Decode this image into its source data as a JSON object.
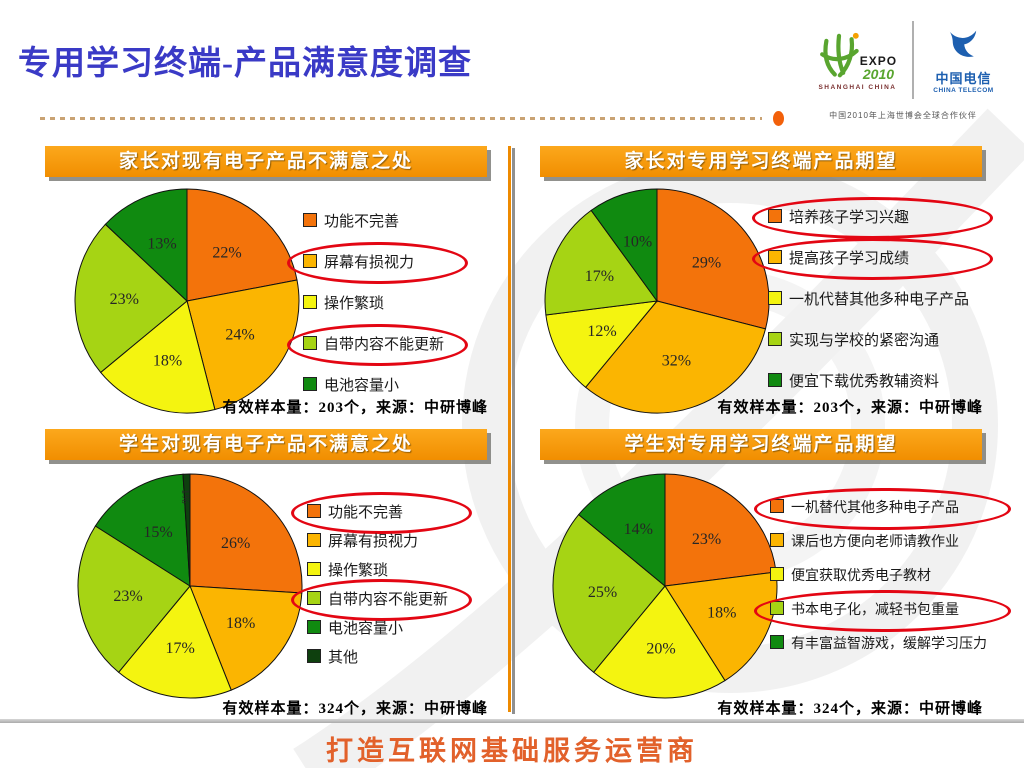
{
  "slide": {
    "title": "专用学习终端-产品满意度调查",
    "footer": "打造互联网基础服务运营商",
    "header_logos": {
      "expo_text": "EXPO",
      "expo_year": "2010",
      "expo_sub": "SHANGHAI CHINA",
      "telecom_cn": "中国电信",
      "telecom_en": "CHINA TELECOM",
      "caption": "中国2010年上海世博会全球合作伙伴"
    }
  },
  "colors": {
    "title_blue": "#3A3AC6",
    "banner_orange": "#F79500",
    "footer_orange": "#E2612B",
    "divider_orange": "#EE8A00",
    "emphasis_red": "#E30613"
  },
  "chart_data": [
    {
      "type": "pie",
      "title": "家长对现有电子产品不满意之处",
      "labels": [
        "功能不完善",
        "屏幕有损视力",
        "操作繁琐",
        "自带内容不能更新",
        "电池容量小"
      ],
      "values": [
        22,
        24,
        18,
        23,
        13
      ],
      "pct_labels": [
        "22%",
        "24%",
        "18%",
        "23%",
        "13%"
      ],
      "colors": [
        "#F3730B",
        "#FBB501",
        "#F4F410",
        "#A6D414",
        "#108A10"
      ],
      "circled": [
        1,
        3
      ],
      "legend_position": "right",
      "source": "有效样本量：203个，来源：中研博峰"
    },
    {
      "type": "pie",
      "title": "家长对专用学习终端产品期望",
      "labels": [
        "培养孩子学习兴趣",
        "提高孩子学习成绩",
        "一机代替其他多种电子产品",
        "实现与学校的紧密沟通",
        "便宜下载优秀教辅资料"
      ],
      "values": [
        29,
        32,
        12,
        17,
        10
      ],
      "pct_labels": [
        "29%",
        "32%",
        "12%",
        "17%",
        "10%"
      ],
      "colors": [
        "#F3730B",
        "#FBB501",
        "#F4F410",
        "#A6D414",
        "#108A10"
      ],
      "circled": [
        0,
        1
      ],
      "legend_position": "right",
      "source": "有效样本量：203个，来源：中研博峰"
    },
    {
      "type": "pie",
      "title": "学生对现有电子产品不满意之处",
      "labels": [
        "功能不完善",
        "屏幕有损视力",
        "操作繁琐",
        "自带内容不能更新",
        "电池容量小",
        "其他"
      ],
      "values": [
        26,
        18,
        17,
        23,
        15,
        1
      ],
      "pct_labels": [
        "26%",
        "18%",
        "17%",
        "23%",
        "15%",
        "1%"
      ],
      "colors": [
        "#F3730B",
        "#FBB501",
        "#F4F410",
        "#A6D414",
        "#108A10",
        "#0E400E"
      ],
      "circled": [
        0,
        3
      ],
      "legend_position": "right",
      "source": "有效样本量：324个，来源：中研博峰"
    },
    {
      "type": "pie",
      "title": "学生对专用学习终端产品期望",
      "labels": [
        "一机替代其他多种电子产品",
        "课后也方便向老师请教作业",
        "便宜获取优秀电子教材",
        "书本电子化，减轻书包重量",
        "有丰富益智游戏，缓解学习压力"
      ],
      "values": [
        23,
        18,
        20,
        25,
        14
      ],
      "pct_labels": [
        "23%",
        "18%",
        "20%",
        "25%",
        "14%"
      ],
      "colors": [
        "#F3730B",
        "#FBB501",
        "#F4F410",
        "#A6D414",
        "#108A10"
      ],
      "circled": [
        0,
        3
      ],
      "legend_position": "right",
      "source": "有效样本量：324个，来源：中研博峰"
    }
  ]
}
